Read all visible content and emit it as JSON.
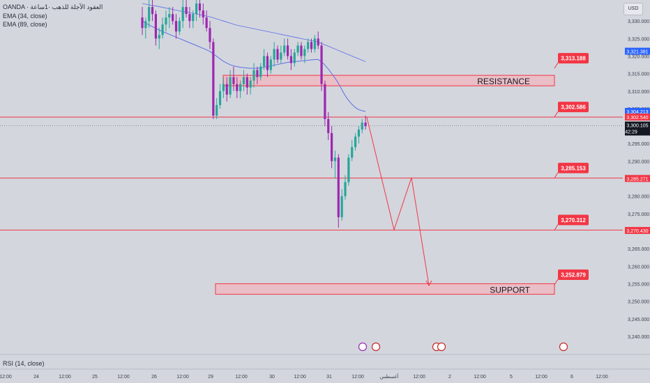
{
  "header": {
    "symbol_line": "OANDA · العقود الآجلة للذهب ·1ساعة",
    "ema1": "EMA (34, close)",
    "ema2": "EMA (89, close)",
    "currency_button": "USD"
  },
  "rsi_label": "RSI (14, close)",
  "colors": {
    "background": "#d3d6dd",
    "bull": "#26a69a",
    "bear": "#9c27b0",
    "level": "#f23645",
    "ema": "#5b6ee8",
    "zone": "#f2b6be"
  },
  "chart_data": {
    "type": "candlestick",
    "title": "",
    "ylim": [
      3237.0,
      3336.0
    ],
    "y_ticks": [
      3240,
      3245,
      3250,
      3255,
      3260,
      3265,
      3270,
      3275,
      3280,
      3285,
      3290,
      3295,
      3300,
      3305,
      3310,
      3315,
      3320,
      3325,
      3330
    ],
    "x_tick_labels": [
      "12:00",
      "24",
      "12:00",
      "25",
      "12:00",
      "26",
      "12:00",
      "29",
      "12:00",
      "30",
      "12:00",
      "31",
      "12:00",
      "أغسطس",
      "12:00",
      "2",
      "12:00",
      "5",
      "12:00",
      "6",
      "12:00"
    ],
    "candles": [
      [
        3331,
        3334,
        3326,
        3328
      ],
      [
        3328,
        3331,
        3325,
        3330
      ],
      [
        3330,
        3336,
        3328,
        3334
      ],
      [
        3334,
        3336,
        3330,
        3332
      ],
      [
        3332,
        3333,
        3323,
        3325
      ],
      [
        3325,
        3328,
        3322,
        3326
      ],
      [
        3326,
        3331,
        3325,
        3329
      ],
      [
        3329,
        3333,
        3327,
        3331
      ],
      [
        3331,
        3334,
        3328,
        3332
      ],
      [
        3332,
        3334,
        3329,
        3330
      ],
      [
        3330,
        3332,
        3325,
        3327
      ],
      [
        3327,
        3331,
        3326,
        3330
      ],
      [
        3330,
        3336,
        3328,
        3334
      ],
      [
        3334,
        3336,
        3331,
        3332
      ],
      [
        3332,
        3334,
        3328,
        3330
      ],
      [
        3330,
        3333,
        3328,
        3332
      ],
      [
        3332,
        3336,
        3330,
        3335
      ],
      [
        3335,
        3336,
        3331,
        3333
      ],
      [
        3333,
        3335,
        3329,
        3331
      ],
      [
        3331,
        3333,
        3327,
        3328
      ],
      [
        3328,
        3330,
        3322,
        3324
      ],
      [
        3324,
        3325,
        3302,
        3303
      ],
      [
        3303,
        3308,
        3302,
        3306
      ],
      [
        3306,
        3312,
        3305,
        3310
      ],
      [
        3310,
        3314,
        3308,
        3312
      ],
      [
        3312,
        3314,
        3307,
        3309
      ],
      [
        3309,
        3316,
        3308,
        3314
      ],
      [
        3314,
        3317,
        3310,
        3312
      ],
      [
        3312,
        3314,
        3308,
        3310
      ],
      [
        3310,
        3313,
        3308,
        3312
      ],
      [
        3312,
        3316,
        3310,
        3314
      ],
      [
        3314,
        3315,
        3309,
        3311
      ],
      [
        3311,
        3314,
        3309,
        3313
      ],
      [
        3313,
        3318,
        3311,
        3316
      ],
      [
        3316,
        3317,
        3312,
        3314
      ],
      [
        3314,
        3318,
        3313,
        3317
      ],
      [
        3317,
        3322,
        3316,
        3320
      ],
      [
        3320,
        3321,
        3314,
        3316
      ],
      [
        3316,
        3320,
        3315,
        3319
      ],
      [
        3319,
        3324,
        3317,
        3322
      ],
      [
        3322,
        3323,
        3318,
        3319
      ],
      [
        3319,
        3323,
        3318,
        3321
      ],
      [
        3321,
        3325,
        3320,
        3323
      ],
      [
        3323,
        3325,
        3319,
        3320
      ],
      [
        3320,
        3322,
        3316,
        3318
      ],
      [
        3318,
        3322,
        3317,
        3321
      ],
      [
        3321,
        3324,
        3320,
        3323
      ],
      [
        3323,
        3324,
        3319,
        3320
      ],
      [
        3320,
        3323,
        3318,
        3322
      ],
      [
        3322,
        3325,
        3321,
        3324
      ],
      [
        3324,
        3325,
        3321,
        3322
      ],
      [
        3322,
        3326,
        3321,
        3325
      ],
      [
        3325,
        3327,
        3322,
        3323
      ],
      [
        3323,
        3324,
        3310,
        3312
      ],
      [
        3312,
        3313,
        3300,
        3302
      ],
      [
        3302,
        3304,
        3296,
        3298
      ],
      [
        3298,
        3300,
        3288,
        3290
      ],
      [
        3290,
        3293,
        3285,
        3291
      ],
      [
        3291,
        3292,
        3271,
        3274
      ],
      [
        3274,
        3282,
        3273,
        3280
      ],
      [
        3280,
        3286,
        3279,
        3284
      ],
      [
        3284,
        3292,
        3283,
        3291
      ],
      [
        3291,
        3296,
        3290,
        3294
      ],
      [
        3294,
        3298,
        3293,
        3297
      ],
      [
        3297,
        3300,
        3295,
        3299
      ],
      [
        3299,
        3302,
        3298,
        3301
      ],
      [
        3301,
        3303,
        3299,
        3300
      ]
    ],
    "series": [
      {
        "name": "EMA (34, close)",
        "values": [
          3330,
          3329.4,
          3328.9,
          3328.4,
          3327.9,
          3327.4,
          3327,
          3326.6,
          3326.2,
          3325.8,
          3325.4,
          3325,
          3324.6,
          3324.2,
          3323.8,
          3323.4,
          3323,
          3322.6,
          3322.2,
          3321.8,
          3321.3,
          3320.6,
          3319.9,
          3319.2,
          3318.5,
          3318,
          3317.5,
          3317.2,
          3317,
          3316.8,
          3316.7,
          3316.6,
          3316.5,
          3316.5,
          3316.5,
          3316.6,
          3316.8,
          3317,
          3317.2,
          3317.4,
          3317.6,
          3317.8,
          3318,
          3318.2,
          3318.3,
          3318.4,
          3318.5,
          3318.6,
          3318.7,
          3318.8,
          3318.9,
          3319,
          3319,
          3318.4,
          3317.4,
          3316.3,
          3315,
          3313.7,
          3312.2,
          3310.4,
          3308.7,
          3307.3,
          3306.2,
          3305.3,
          3304.7,
          3304.4,
          3304.2
        ]
      },
      {
        "name": "EMA (89, close)",
        "values": [
          3335,
          3334.8,
          3334.6,
          3334.4,
          3334.3,
          3334.1,
          3333.9,
          3333.7,
          3333.5,
          3333.3,
          3333.1,
          3332.9,
          3332.7,
          3332.6,
          3332.4,
          3332.2,
          3332,
          3331.8,
          3331.6,
          3331.4,
          3331.2,
          3330.9,
          3330.6,
          3330.3,
          3330,
          3329.7,
          3329.4,
          3329.1,
          3328.8,
          3328.6,
          3328.4,
          3328.2,
          3328,
          3327.8,
          3327.6,
          3327.4,
          3327.2,
          3327,
          3326.8,
          3326.6,
          3326.4,
          3326.2,
          3326,
          3325.8,
          3325.6,
          3325.4,
          3325.2,
          3325,
          3324.8,
          3324.6,
          3324.4,
          3324.2,
          3324,
          3323.6,
          3323.2,
          3322.8,
          3322.4,
          3322,
          3321.6,
          3321.2,
          3320.8,
          3320.4,
          3320,
          3319.6,
          3319.2,
          3318.8,
          3318.4
        ]
      }
    ],
    "levels": [
      {
        "value": 3302.586,
        "label": "3,302.586",
        "axis_label": "3,302.540"
      },
      {
        "value": 3285.153,
        "label": "3,285.153",
        "axis_label": "3,285.271"
      },
      {
        "value": 3270.312,
        "label": "3,270.312",
        "axis_label": "3,270.430"
      }
    ],
    "zones": [
      {
        "name": "RESISTANCE",
        "y_low": 3311.5,
        "y_high": 3314.5,
        "price_label": "3,313.188"
      },
      {
        "name": "SUPPORT",
        "y_low": 3252.0,
        "y_high": 3255.0,
        "price_label": "3,252.879"
      }
    ],
    "axis_badges": [
      {
        "value": 3321.381,
        "label": "3,321.381",
        "color": "#2962ff"
      },
      {
        "value": 3304.213,
        "label": "3,304.213",
        "color": "#2962ff"
      }
    ],
    "current_price": {
      "value": 3300.105,
      "label": "3,300.105",
      "countdown": "42:29"
    },
    "projection": [
      3302.5,
      3270.4,
      3285.3,
      3254.5
    ]
  }
}
